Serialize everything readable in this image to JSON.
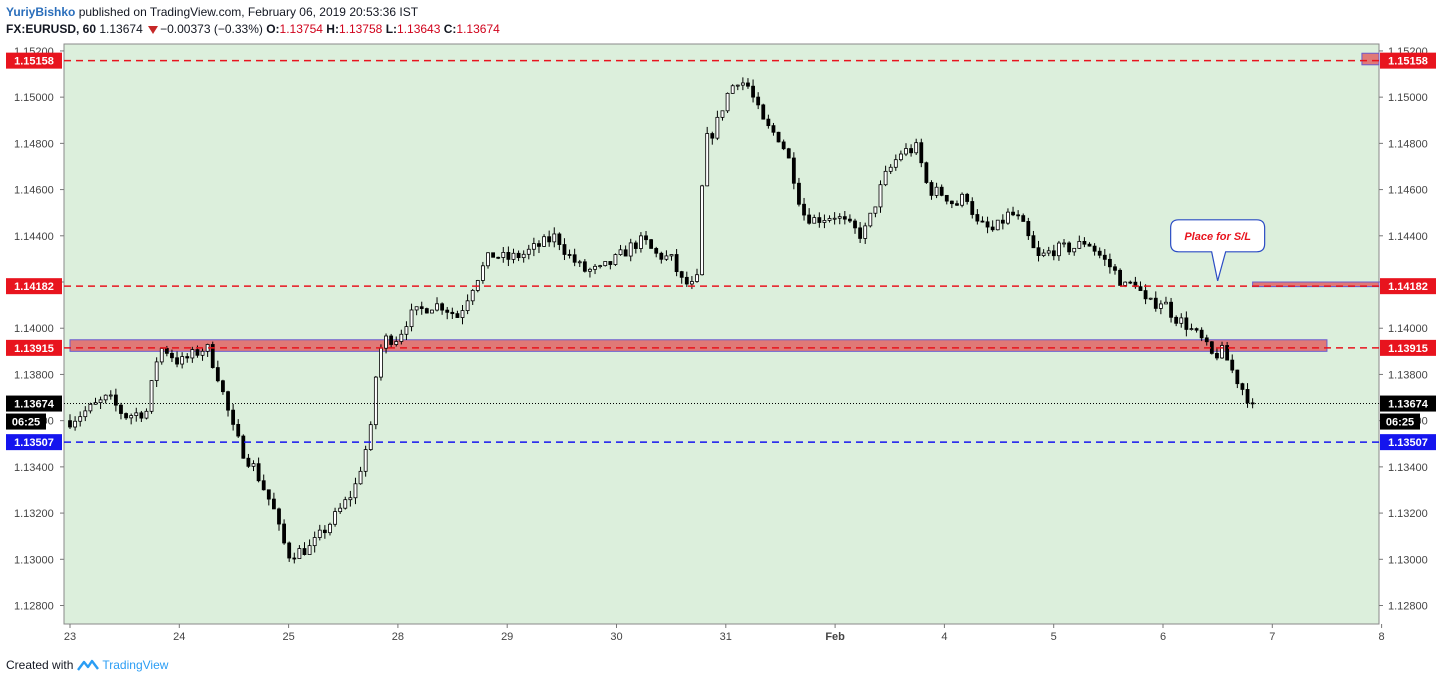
{
  "header": {
    "author": "YuriyBishko",
    "published_text": "published on TradingView.com, February 06, 2019 20:53:36 IST",
    "symbol": "FX:EURUSD, 60",
    "last": "1.13674",
    "change": "−0.00373 (−0.33%)",
    "o_label": "O:",
    "o_value": "1.13754",
    "h_label": "H:",
    "h_value": "1.13758",
    "l_label": "L:",
    "l_value": "1.13643",
    "c_label": "C:",
    "c_value": "1.13674"
  },
  "footer": {
    "created_with": "Created with",
    "brand": "TradingView"
  },
  "colors": {
    "plot_bg": "#dcefdc",
    "candle": "#000000",
    "red_line": "#e8141e",
    "blue_line": "#1515ee",
    "zone_fill": "#e06b6b",
    "zone_border": "#6a5acd"
  },
  "chart_data": {
    "type": "candlestick",
    "timeframe": "60",
    "ylim": [
      1.1272,
      1.1523
    ],
    "yticks": [
      "1.12800",
      "1.13000",
      "1.13200",
      "1.13400",
      "1.13600",
      "1.13800",
      "1.14000",
      "1.14200",
      "1.14400",
      "1.14600",
      "1.14800",
      "1.15000",
      "1.15200"
    ],
    "xticks": [
      {
        "label": "23",
        "t": 0
      },
      {
        "label": "24",
        "t": 1
      },
      {
        "label": "25",
        "t": 2
      },
      {
        "label": "28",
        "t": 3
      },
      {
        "label": "29",
        "t": 4
      },
      {
        "label": "30",
        "t": 5
      },
      {
        "label": "31",
        "t": 6
      },
      {
        "label": "Feb",
        "t": 7
      },
      {
        "label": "4",
        "t": 8
      },
      {
        "label": "5",
        "t": 9
      },
      {
        "label": "6",
        "t": 10
      },
      {
        "label": "7",
        "t": 11
      },
      {
        "label": "8",
        "t": 12
      }
    ],
    "horizontal_levels": [
      {
        "price": 1.15158,
        "label": "1.15158",
        "color": "red",
        "style": "dashed"
      },
      {
        "price": 1.14182,
        "label": "1.14182",
        "color": "red",
        "style": "dashed"
      },
      {
        "price": 1.13915,
        "label": "1.13915",
        "color": "red",
        "style": "dashed"
      },
      {
        "price": 1.13507,
        "label": "1.13507",
        "color": "blue",
        "style": "dashed"
      }
    ],
    "last_price": {
      "price": 1.13674,
      "label": "1.13674",
      "countdown": "06:25"
    },
    "zones": [
      {
        "t0": 0,
        "t1": 11.5,
        "high": 1.1395,
        "low": 1.139
      },
      {
        "t0": 10.82,
        "t1": 12.0,
        "high": 1.142,
        "low": 1.1418
      },
      {
        "t0": 11.82,
        "t1": 12.95,
        "high": 1.1519,
        "low": 1.1514
      }
    ],
    "annotation": {
      "text": "Place for S/L",
      "t": 10.5,
      "price": 1.144,
      "pointer_t": 10.5,
      "pointer_price": 1.14205
    },
    "anchors": [
      [
        0.0,
        1.136
      ],
      [
        0.35,
        1.137
      ],
      [
        0.5,
        1.1362
      ],
      [
        0.7,
        1.1364
      ],
      [
        0.8,
        1.1388
      ],
      [
        0.85,
        1.1392
      ],
      [
        1.0,
        1.1385
      ],
      [
        1.25,
        1.1392
      ],
      [
        1.35,
        1.138
      ],
      [
        1.5,
        1.1355
      ],
      [
        1.6,
        1.1345
      ],
      [
        1.68,
        1.134
      ],
      [
        1.78,
        1.133
      ],
      [
        1.86,
        1.1322
      ],
      [
        1.93,
        1.131
      ],
      [
        2.0,
        1.1302
      ],
      [
        2.2,
        1.1305
      ],
      [
        2.45,
        1.132
      ],
      [
        2.6,
        1.133
      ],
      [
        2.75,
        1.1355
      ],
      [
        2.8,
        1.138
      ],
      [
        2.86,
        1.1395
      ],
      [
        3.0,
        1.1396
      ],
      [
        3.1,
        1.1405
      ],
      [
        3.3,
        1.141
      ],
      [
        3.4,
        1.141
      ],
      [
        3.55,
        1.1405
      ],
      [
        3.7,
        1.142
      ],
      [
        3.85,
        1.1432
      ],
      [
        4.0,
        1.143
      ],
      [
        4.15,
        1.1432
      ],
      [
        4.3,
        1.1436
      ],
      [
        4.45,
        1.144
      ],
      [
        4.55,
        1.1432
      ],
      [
        4.7,
        1.1425
      ],
      [
        4.85,
        1.1425
      ],
      [
        5.0,
        1.143
      ],
      [
        5.15,
        1.1436
      ],
      [
        5.25,
        1.1438
      ],
      [
        5.35,
        1.1432
      ],
      [
        5.5,
        1.143
      ],
      [
        5.6,
        1.142
      ],
      [
        5.7,
        1.1418
      ],
      [
        5.75,
        1.1422
      ],
      [
        5.8,
        1.148
      ],
      [
        5.9,
        1.1486
      ],
      [
        6.0,
        1.15
      ],
      [
        6.1,
        1.1508
      ],
      [
        6.2,
        1.1505
      ],
      [
        6.35,
        1.1488
      ],
      [
        6.5,
        1.1482
      ],
      [
        6.6,
        1.147
      ],
      [
        6.7,
        1.145
      ],
      [
        6.8,
        1.1447
      ],
      [
        7.0,
        1.1449
      ],
      [
        7.1,
        1.1445
      ],
      [
        7.25,
        1.144
      ],
      [
        7.3,
        1.1445
      ],
      [
        7.45,
        1.1465
      ],
      [
        7.6,
        1.1476
      ],
      [
        7.75,
        1.1478
      ],
      [
        7.85,
        1.146
      ],
      [
        8.0,
        1.1458
      ],
      [
        8.1,
        1.1453
      ],
      [
        8.2,
        1.1458
      ],
      [
        8.3,
        1.1445
      ],
      [
        8.45,
        1.1442
      ],
      [
        8.6,
        1.145
      ],
      [
        8.7,
        1.1446
      ],
      [
        8.85,
        1.143
      ],
      [
        9.0,
        1.1434
      ],
      [
        9.2,
        1.1435
      ],
      [
        9.3,
        1.1438
      ],
      [
        9.45,
        1.143
      ],
      [
        9.55,
        1.1425
      ],
      [
        9.65,
        1.1418
      ],
      [
        9.75,
        1.142
      ],
      [
        9.85,
        1.141
      ],
      [
        10.0,
        1.1412
      ],
      [
        10.1,
        1.1405
      ],
      [
        10.2,
        1.1402
      ],
      [
        10.35,
        1.1395
      ],
      [
        10.45,
        1.1388
      ],
      [
        10.55,
        1.139
      ],
      [
        10.65,
        1.138
      ],
      [
        10.75,
        1.1372
      ],
      [
        10.82,
        1.1367
      ]
    ]
  }
}
